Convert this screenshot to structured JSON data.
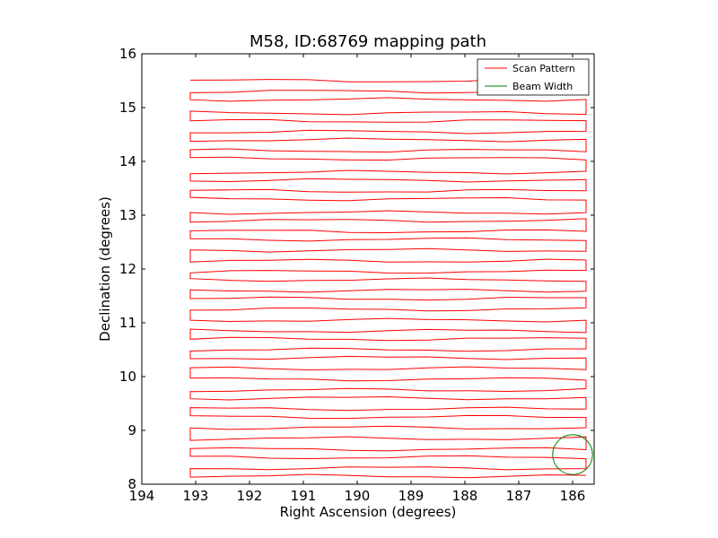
{
  "chart_data": {
    "type": "line",
    "title": "M58, ID:68769 mapping path",
    "xlabel": "Right Ascension (degrees)",
    "ylabel": "Declination (degrees)",
    "xlim": [
      194,
      185.6
    ],
    "ylim": [
      8,
      16
    ],
    "x_inverted": true,
    "xticks": [
      194,
      193,
      192,
      191,
      190,
      189,
      188,
      187,
      186
    ],
    "xtick_labels": [
      "194",
      "193",
      "192",
      "191",
      "190",
      "189",
      "188",
      "187",
      "186"
    ],
    "yticks": [
      8,
      9,
      10,
      11,
      12,
      13,
      14,
      15,
      16
    ],
    "ytick_labels": [
      "8",
      "9",
      "10",
      "11",
      "12",
      "13",
      "14",
      "15",
      "16"
    ],
    "grid": false,
    "legend_position": "top-right",
    "series": [
      {
        "name": "Scan Pattern",
        "color": "#ff0000",
        "style": "boustrophedon raster path",
        "ra_left_edge": 193.1,
        "ra_right_edge": 185.75,
        "dec_rows": [
          15.5,
          15.3,
          15.15,
          14.9,
          14.75,
          14.55,
          14.4,
          14.2,
          14.05,
          13.8,
          13.65,
          13.45,
          13.3,
          13.05,
          12.9,
          12.7,
          12.55,
          12.35,
          12.15,
          11.95,
          11.8,
          11.6,
          11.45,
          11.25,
          11.05,
          10.85,
          10.7,
          10.5,
          10.35,
          10.15,
          9.95,
          9.75,
          9.6,
          9.4,
          9.25,
          9.05,
          8.85,
          8.65,
          8.5,
          8.3,
          8.15
        ]
      },
      {
        "name": "Beam Width",
        "color": "#008000",
        "style": "circle",
        "center_ra": 186.0,
        "center_dec": 8.55,
        "radius_deg": 0.37
      }
    ]
  }
}
